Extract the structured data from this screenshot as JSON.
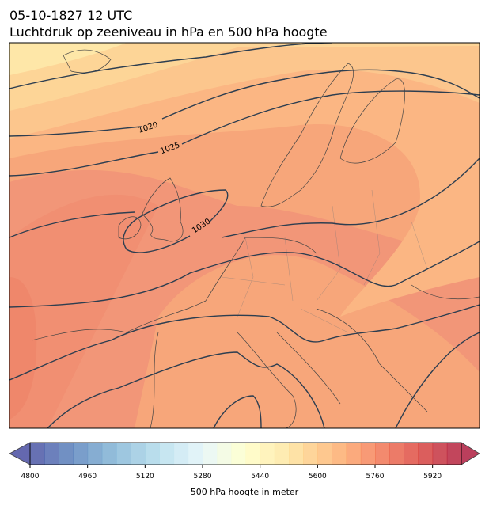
{
  "title": "05-10-1827 12 UTC",
  "subtitle": "Luchtdruk op zeeniveau in hPa en 500 hPa hoogte",
  "contour_labels": [
    "1020",
    "1025",
    "1030"
  ],
  "colorbar": {
    "label": "500 hPa hoogte in meter",
    "min": 4800,
    "max": 6000,
    "step": 40,
    "ticks": [
      4800,
      4960,
      5120,
      5280,
      5440,
      5600,
      5760,
      5920
    ]
  }
}
